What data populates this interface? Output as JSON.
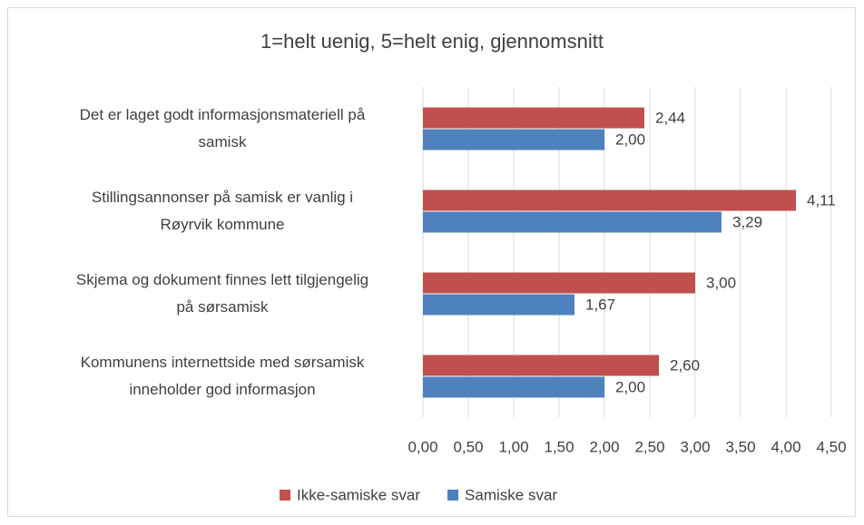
{
  "chart_data": {
    "type": "hbar",
    "title": "1=helt uenig, 5=helt enig, gjennomsnitt",
    "categories": [
      "Det er laget godt informasjonsmateriell på\nsamisk",
      "Stillingsannonser på samisk er vanlig i\nRøyrvik kommune",
      "Skjema og dokument finnes lett tilgjengelig\npå sørsamisk",
      "Kommunens internettside med sørsamisk\ninneholder god informasjon"
    ],
    "series": [
      {
        "name": "Ikke-samiske svar",
        "color": "#c0504d",
        "values": [
          2.44,
          4.11,
          3.0,
          2.6
        ],
        "value_labels": [
          "2,44",
          "4,11",
          "3,00",
          "2,60"
        ]
      },
      {
        "name": "Samiske svar",
        "color": "#4f81bd",
        "values": [
          2.0,
          3.29,
          1.67,
          2.0
        ],
        "value_labels": [
          "2,00",
          "3,29",
          "1,67",
          "2,00"
        ]
      }
    ],
    "xlim": [
      0,
      4.5
    ],
    "xticks": [
      {
        "value": 0,
        "label": "0,00"
      },
      {
        "value": 0.5,
        "label": "0,50"
      },
      {
        "value": 1,
        "label": "1,00"
      },
      {
        "value": 1.5,
        "label": "1,50"
      },
      {
        "value": 2,
        "label": "2,00"
      },
      {
        "value": 2.5,
        "label": "2,50"
      },
      {
        "value": 3,
        "label": "3,00"
      },
      {
        "value": 3.5,
        "label": "3,50"
      },
      {
        "value": 4,
        "label": "4,00"
      },
      {
        "value": 4.5,
        "label": "4,50"
      }
    ],
    "grid": true,
    "legend": "bottom"
  }
}
